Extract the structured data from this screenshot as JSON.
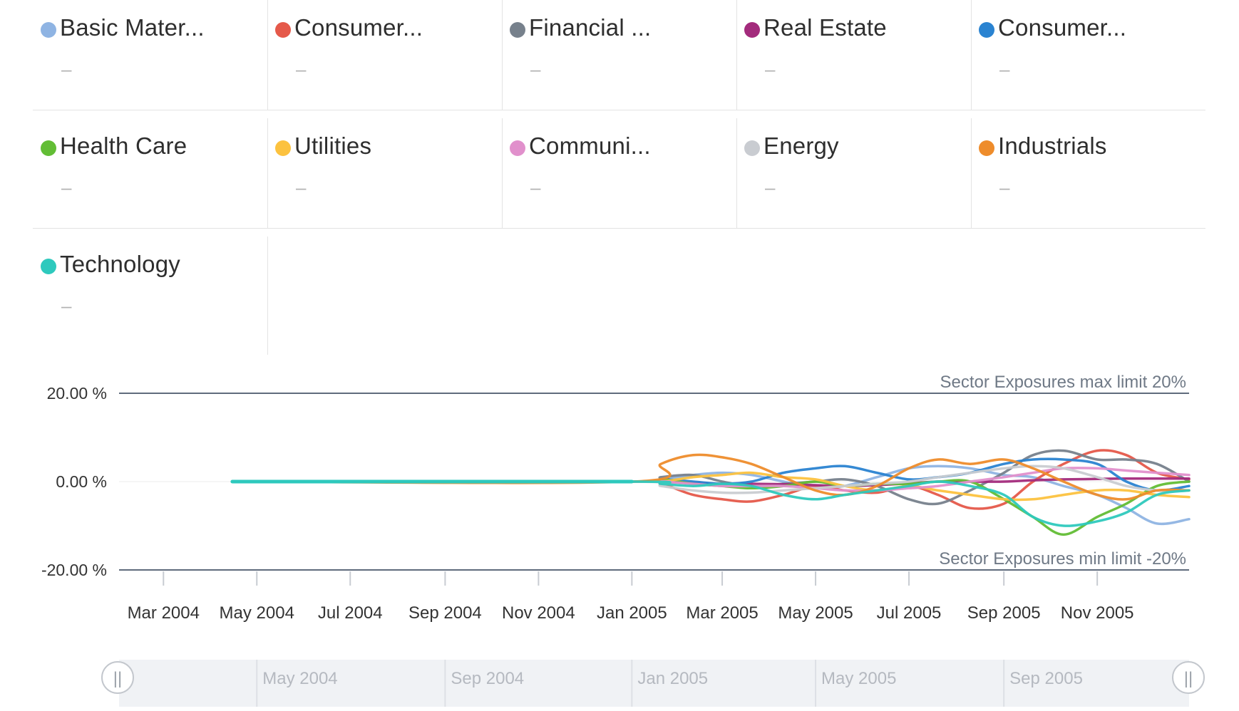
{
  "legend": [
    {
      "name": "Basic Mater...",
      "value": "–",
      "color": "#8fb4e3"
    },
    {
      "name": "Consumer...",
      "value": "–",
      "color": "#e5594a"
    },
    {
      "name": "Financial ...",
      "value": "–",
      "color": "#77818c"
    },
    {
      "name": "Real Estate",
      "value": "–",
      "color": "#a32b7c"
    },
    {
      "name": "Consumer...",
      "value": "–",
      "color": "#2a83d1"
    },
    {
      "name": "Health Care",
      "value": "–",
      "color": "#62bd35"
    },
    {
      "name": "Utilities",
      "value": "–",
      "color": "#fcc23f"
    },
    {
      "name": "Communi...",
      "value": "–",
      "color": "#e190cc"
    },
    {
      "name": "Energy",
      "value": "–",
      "color": "#c9ccd1"
    },
    {
      "name": "Industrials",
      "value": "–",
      "color": "#ee8c2b"
    },
    {
      "name": "Technology",
      "value": "–",
      "color": "#2ec9bd"
    }
  ],
  "chart_data": {
    "type": "line",
    "y_ticks": [
      "20.00 %",
      "0.00 %",
      "-20.00 %"
    ],
    "ylim": [
      -20,
      20
    ],
    "x_range": [
      "2004-02-01",
      "2005-12-31"
    ],
    "x_ticks": [
      {
        "date": "2004-03-01",
        "label": "Mar 2004"
      },
      {
        "date": "2004-05-01",
        "label": "May 2004"
      },
      {
        "date": "2004-07-01",
        "label": "Jul 2004"
      },
      {
        "date": "2004-09-01",
        "label": "Sep 2004"
      },
      {
        "date": "2004-11-01",
        "label": "Nov 2004"
      },
      {
        "date": "2005-01-01",
        "label": "Jan 2005"
      },
      {
        "date": "2005-03-01",
        "label": "Mar 2005"
      },
      {
        "date": "2005-05-01",
        "label": "May 2005"
      },
      {
        "date": "2005-07-01",
        "label": "Jul 2005"
      },
      {
        "date": "2005-09-01",
        "label": "Sep 2005"
      },
      {
        "date": "2005-11-01",
        "label": "Nov 2005"
      }
    ],
    "limits": [
      {
        "value": 20,
        "label": "Sector Exposures max limit 20%"
      },
      {
        "value": -20,
        "label": "Sector Exposures min limit -20%"
      }
    ],
    "x": [
      "2004-04-15",
      "2005-01-01",
      "2005-01-20",
      "2005-02-10",
      "2005-03-01",
      "2005-03-20",
      "2005-04-10",
      "2005-05-01",
      "2005-05-20",
      "2005-06-10",
      "2005-07-01",
      "2005-07-20",
      "2005-08-10",
      "2005-09-01",
      "2005-09-20",
      "2005-10-10",
      "2005-11-01",
      "2005-11-20",
      "2005-12-10",
      "2005-12-31"
    ],
    "series": [
      {
        "name": "Basic Mater...",
        "color": "#8fb4e3",
        "values": [
          0,
          0,
          0.5,
          1.5,
          2,
          1.5,
          0,
          -1.5,
          -1,
          1,
          3,
          3.5,
          3,
          1.5,
          1,
          -1,
          -3,
          -6,
          -9.5,
          -8.5
        ]
      },
      {
        "name": "Consumer...",
        "color": "#e5594a",
        "values": [
          0,
          0,
          -0.5,
          -3,
          -4,
          -4.5,
          -3,
          -1,
          -2,
          -2.5,
          -1,
          -3,
          -6,
          -5,
          0,
          4,
          7,
          6,
          2,
          0.5
        ]
      },
      {
        "name": "Financial ...",
        "color": "#77818c",
        "values": [
          0,
          0,
          1,
          1.5,
          0,
          -1,
          -0.5,
          0,
          0.5,
          -1,
          -4,
          -5,
          -2,
          2,
          6,
          7,
          5,
          5,
          4,
          0
        ]
      },
      {
        "name": "Real Estate",
        "color": "#a32b7c",
        "values": [
          0,
          0,
          0,
          -0.3,
          -0.5,
          -0.5,
          -0.6,
          -0.8,
          -1,
          -0.8,
          -0.4,
          0,
          0,
          0,
          0.3,
          0.5,
          0.6,
          0.7,
          0.7,
          0.7
        ]
      },
      {
        "name": "Consumer...",
        "color": "#2a83d1",
        "values": [
          0,
          0,
          0.5,
          0,
          -0.5,
          0,
          2,
          3,
          3.5,
          2,
          0.5,
          1,
          2,
          4,
          5,
          5,
          4,
          0,
          -2,
          -1
        ]
      },
      {
        "name": "Health Care",
        "color": "#62bd35",
        "values": [
          0,
          0,
          0.5,
          -0.5,
          -1,
          -1.5,
          -1,
          0,
          -1,
          -0.5,
          -0.5,
          0,
          0,
          -4,
          -8,
          -12,
          -8,
          -5,
          -1,
          0
        ]
      },
      {
        "name": "Utilities",
        "color": "#fcc23f",
        "values": [
          0,
          0,
          0,
          1,
          1.5,
          2,
          1,
          0.5,
          -1,
          -2,
          -1,
          -2,
          -3,
          -4,
          -4,
          -3,
          -2,
          -2,
          -3,
          -3.5
        ]
      },
      {
        "name": "Communi...",
        "color": "#e190cc",
        "values": [
          0,
          0,
          0,
          -0.5,
          -1,
          -1,
          -1,
          -1.5,
          -2,
          -2,
          -1.5,
          -1,
          0,
          1,
          2,
          3,
          3,
          2.5,
          2,
          1.5
        ]
      },
      {
        "name": "Energy",
        "color": "#c9ccd1",
        "values": [
          0,
          0,
          -1,
          -2,
          -2.5,
          -2.5,
          -2,
          -1.5,
          -1,
          -0.5,
          0,
          1,
          2,
          3,
          3.5,
          3,
          1,
          -1,
          -2,
          -2
        ]
      },
      {
        "name": "Industrials",
        "color": "#ee8c2b",
        "values": [
          0,
          0,
          4,
          6,
          5.5,
          4,
          1,
          -2,
          -3,
          -1,
          3,
          5,
          4,
          5,
          3,
          0,
          -3,
          -4,
          -2,
          -2
        ]
      },
      {
        "name": "Technology",
        "color": "#2ec9bd",
        "values": [
          0,
          0,
          -0.5,
          -1,
          -0.5,
          -1,
          -3,
          -4,
          -3,
          -2,
          -1,
          0,
          -1,
          -3,
          -8,
          -10,
          -9,
          -7,
          -3,
          -2
        ]
      }
    ]
  },
  "navigator": {
    "labels": [
      {
        "date": "2004-05-01",
        "label": "May 2004"
      },
      {
        "date": "2004-09-01",
        "label": "Sep 2004"
      },
      {
        "date": "2005-01-01",
        "label": "Jan 2005"
      },
      {
        "date": "2005-05-01",
        "label": "May 2005"
      },
      {
        "date": "2005-09-01",
        "label": "Sep 2005"
      }
    ],
    "handle_left_glyph": "||",
    "handle_right_glyph": "||"
  }
}
